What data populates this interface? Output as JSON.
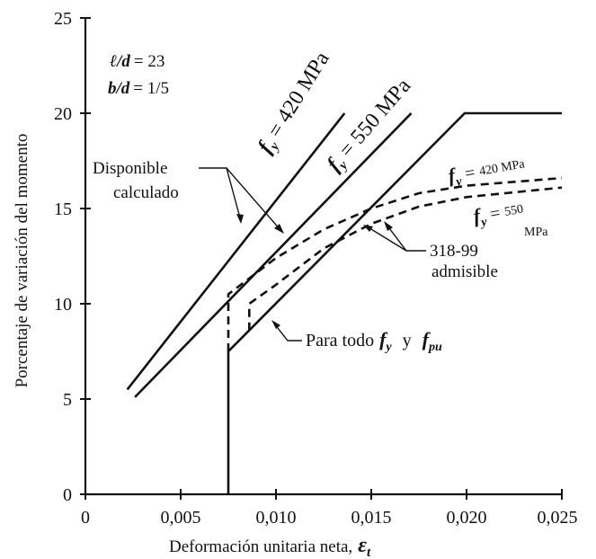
{
  "chart_data": {
    "type": "line",
    "xlabel": "Deformación unitaria neta,",
    "xlabel_symbol": "ε",
    "xlabel_symbol_sub": "t",
    "ylabel": "Porcentaje de variación del momento",
    "xlim": [
      0,
      0.025
    ],
    "ylim": [
      0,
      25
    ],
    "x_ticks": [
      0,
      0.005,
      0.01,
      0.015,
      0.02,
      0.025
    ],
    "x_tick_labels": [
      "0",
      "0,005",
      "0,010",
      "0,015",
      "0,020",
      "0,025"
    ],
    "y_ticks": [
      0,
      5,
      10,
      15,
      20,
      25
    ],
    "y_tick_labels": [
      "0",
      "5",
      "10",
      "15",
      "20",
      "25"
    ],
    "grid": false,
    "parameters": {
      "ld_label": "ℓ/d",
      "ld_value": "= 23",
      "bd_label": "b/d",
      "bd_value": "= 1/5"
    },
    "series": [
      {
        "style": "solid",
        "label": "f_y = 420 MPa",
        "points": [
          [
            0.0022,
            5.5
          ],
          [
            0.0136,
            20.0
          ]
        ]
      },
      {
        "style": "solid",
        "label": "f_y = 550 MPa",
        "points": [
          [
            0.0026,
            5.1
          ],
          [
            0.0171,
            20.0
          ]
        ]
      },
      {
        "style": "solid",
        "label": "Para todo f_y y f_pu",
        "points": [
          [
            0.0075,
            0.0
          ],
          [
            0.0075,
            7.5
          ],
          [
            0.0199,
            20.0
          ],
          [
            0.025,
            20.0
          ]
        ]
      },
      {
        "style": "dashed",
        "label": "f_y = 420 MPa",
        "points": [
          [
            0.0075,
            7.5
          ],
          [
            0.0075,
            10.5
          ],
          [
            0.01,
            12.4
          ],
          [
            0.0125,
            13.9
          ],
          [
            0.015,
            15.0
          ],
          [
            0.0175,
            15.8
          ],
          [
            0.02,
            16.2
          ],
          [
            0.025,
            16.6
          ]
        ]
      },
      {
        "style": "dashed",
        "label": "f_y = 550 MPa",
        "points": [
          [
            0.0086,
            8.6
          ],
          [
            0.0086,
            10.0
          ],
          [
            0.01,
            11.0
          ],
          [
            0.0125,
            12.9
          ],
          [
            0.015,
            14.2
          ],
          [
            0.0175,
            15.1
          ],
          [
            0.02,
            15.6
          ],
          [
            0.025,
            16.1
          ]
        ]
      }
    ],
    "annotations": {
      "disponible": "Disponible",
      "calculado": "calculado",
      "s420_f": "f",
      "s420_sub": "y",
      "s420_rest": " = 420 MPa",
      "s550_f": "f",
      "s550_sub": "y",
      "s550_rest": " = 550 MPa",
      "d420_f": "f",
      "d420_sub": "y",
      "d420_eq": " = ",
      "d420_val": "420 MPa",
      "d550_f": "f",
      "d550_sub": "y",
      "d550_eq": " = ",
      "d550_val": "550",
      "d550_unit": "MPa",
      "code_318": "318-99",
      "admisible": "admisible",
      "para_todo": "Para todo",
      "pt_fy": "f",
      "pt_fy_sub": "y",
      "pt_y": "y",
      "pt_fpu": "f",
      "pt_fpu_sub": "pu"
    }
  }
}
